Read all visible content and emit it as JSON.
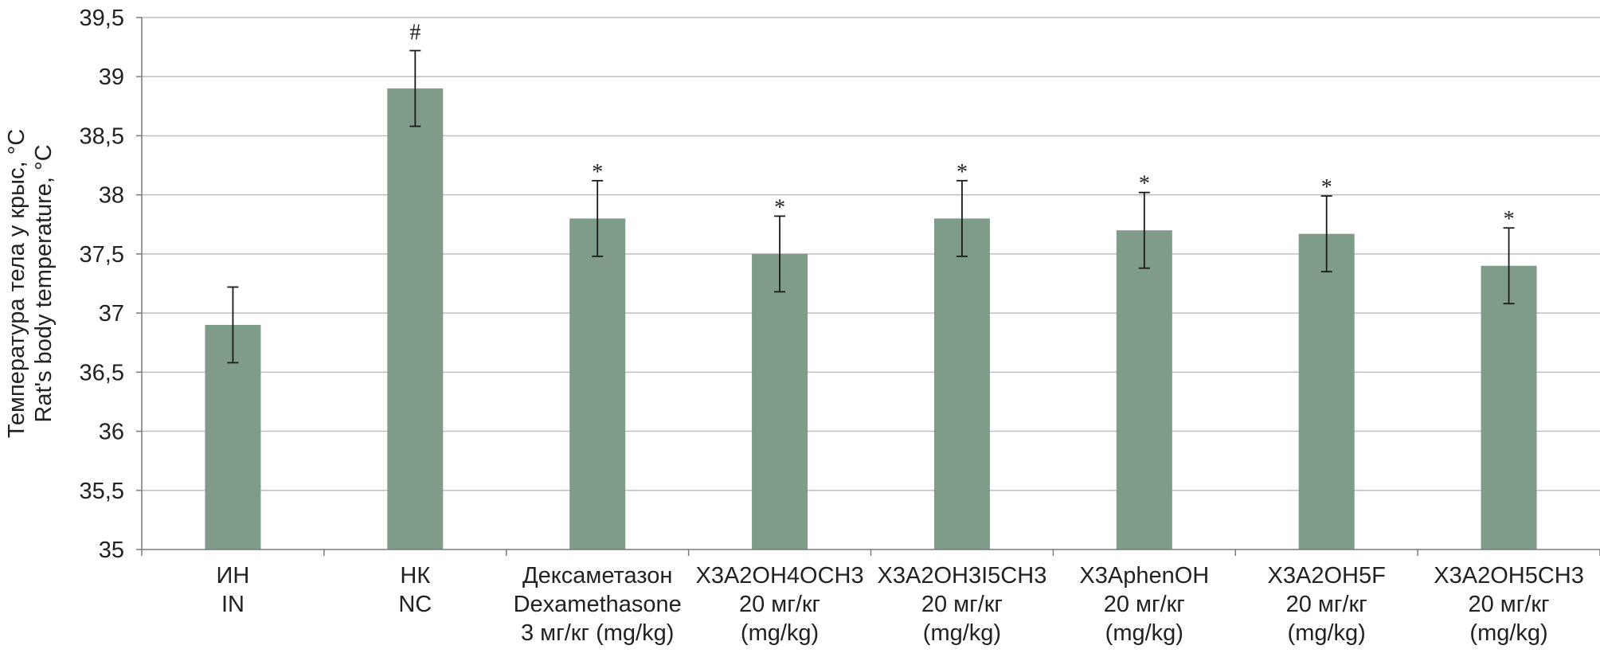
{
  "chart_data": {
    "type": "bar",
    "ylabel": [
      "Температура тела у крыс, °C",
      "Rat's body temperature, °C"
    ],
    "xlabel": "",
    "ylim": [
      35,
      39.5
    ],
    "ytick_step": 0.5,
    "ytick_labels": [
      "35",
      "35,5",
      "36",
      "36,5",
      "37",
      "37,5",
      "38",
      "38,5",
      "39",
      "39,5"
    ],
    "grid": true,
    "bar_color": "#7f9c89",
    "categories": [
      [
        "ИН",
        "IN"
      ],
      [
        "НК",
        "NC"
      ],
      [
        "Дексаметазон",
        "Dexamethasone",
        "3 мг/кг (mg/kg)"
      ],
      [
        "Х3А2ОН4ОСН3",
        "20 мг/кг",
        "(mg/kg)"
      ],
      [
        "Х3А2ОН3I5СН3",
        "20 мг/кг",
        "(mg/kg)"
      ],
      [
        "Х3AphenOH",
        "20 мг/кг",
        "(mg/kg)"
      ],
      [
        "Х3А2ОН5F",
        "20 мг/кг",
        "(mg/kg)"
      ],
      [
        "Х3А2ОН5СН3",
        "20 мг/кг",
        "(mg/kg)"
      ]
    ],
    "values": [
      36.9,
      38.9,
      37.8,
      37.5,
      37.8,
      37.7,
      37.67,
      37.4
    ],
    "errors": [
      0.32,
      0.32,
      0.32,
      0.32,
      0.32,
      0.32,
      0.32,
      0.32
    ],
    "annotations": [
      "",
      "#",
      "*",
      "*",
      "*",
      "*",
      "*",
      "*"
    ]
  }
}
